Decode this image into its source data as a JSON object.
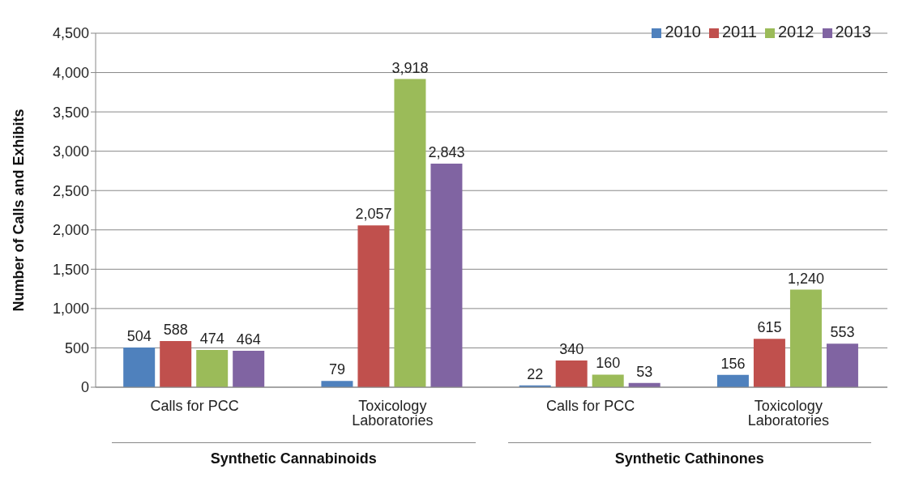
{
  "chart_data": {
    "type": "bar",
    "ylabel": "Number of Calls and Exhibits",
    "categories": [
      "Calls for PCC",
      "Toxicology Laboratories",
      "Calls for PCC",
      "Toxicology Laboratories"
    ],
    "series": [
      {
        "name": "2010",
        "color": "#4f81bd",
        "values": [
          504,
          79,
          22,
          156
        ],
        "value_labels": [
          "504",
          "79",
          "22",
          "156"
        ]
      },
      {
        "name": "2011",
        "color": "#c0504d",
        "values": [
          588,
          2057,
          340,
          615
        ],
        "value_labels": [
          "588",
          "2,057",
          "340",
          "615"
        ]
      },
      {
        "name": "2012",
        "color": "#9bbb59",
        "values": [
          474,
          3918,
          160,
          1240
        ],
        "value_labels": [
          "474",
          "3,918",
          "160",
          "1,240"
        ]
      },
      {
        "name": "2013",
        "color": "#8064a2",
        "values": [
          464,
          2843,
          53,
          553
        ],
        "value_labels": [
          "464",
          "2,843",
          "53",
          "553"
        ]
      }
    ],
    "ylim": [
      0,
      4500
    ],
    "yticks": [
      0,
      500,
      {
        "value": 1000,
        "label": "1,000"
      },
      {
        "value": 1500,
        "label": "1,500"
      },
      {
        "value": 2000,
        "label": "2,000"
      },
      {
        "value": 2500,
        "label": "2,500"
      },
      {
        "value": 3000,
        "label": "3,000"
      },
      {
        "value": 3500,
        "label": "3,500"
      },
      {
        "value": 4000,
        "label": "4,000"
      },
      {
        "value": 4500,
        "label": "4,500"
      }
    ],
    "grid": "y",
    "legend": "top right",
    "annotations": [
      "Synthetic Cannabinoids",
      "Synthetic Cathinones"
    ]
  }
}
